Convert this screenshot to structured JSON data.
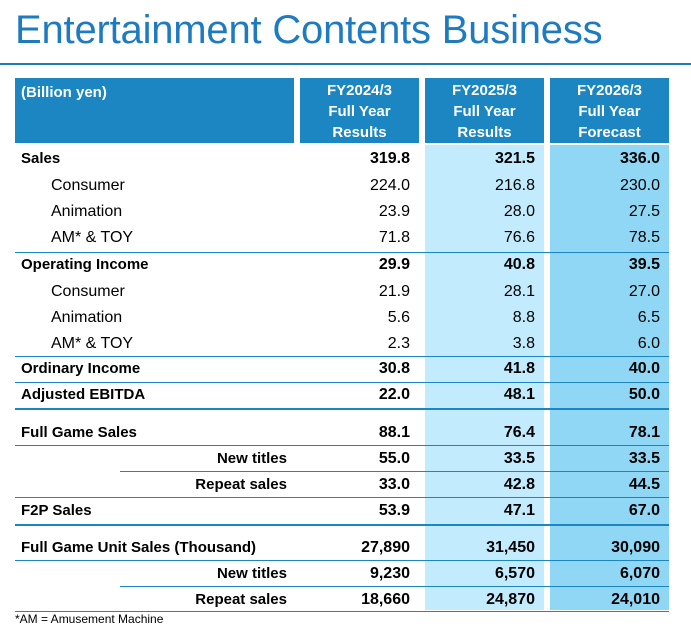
{
  "title": "Entertainment Contents Business",
  "unit_label": "(Billion yen)",
  "columns": [
    {
      "line1": "FY2024/3",
      "line2": "Full Year",
      "line3": "Results"
    },
    {
      "line1": "FY2025/3",
      "line2": "Full Year",
      "line3": "Results"
    },
    {
      "line1": "FY2026/3",
      "line2": "Full Year",
      "line3": "Forecast"
    }
  ],
  "rows": [
    {
      "label": "Sales",
      "v": [
        "319.8",
        "321.5",
        "336.0"
      ]
    },
    {
      "label": "Consumer",
      "v": [
        "224.0",
        "216.8",
        "230.0"
      ]
    },
    {
      "label": "Animation",
      "v": [
        "23.9",
        "28.0",
        "27.5"
      ]
    },
    {
      "label": "AM* & TOY",
      "v": [
        "71.8",
        "76.6",
        "78.5"
      ]
    },
    {
      "label": "Operating Income",
      "v": [
        "29.9",
        "40.8",
        "39.5"
      ]
    },
    {
      "label": "Consumer",
      "v": [
        "21.9",
        "28.1",
        "27.0"
      ]
    },
    {
      "label": "Animation",
      "v": [
        "5.6",
        "8.8",
        "6.5"
      ]
    },
    {
      "label": "AM* & TOY",
      "v": [
        "2.3",
        "3.8",
        "6.0"
      ]
    },
    {
      "label": "Ordinary Income",
      "v": [
        "30.8",
        "41.8",
        "40.0"
      ]
    },
    {
      "label": "Adjusted EBITDA",
      "v": [
        "22.0",
        "48.1",
        "50.0"
      ]
    },
    {
      "label": "Full Game Sales",
      "v": [
        "88.1",
        "76.4",
        "78.1"
      ]
    },
    {
      "label": "New titles",
      "v": [
        "55.0",
        "33.5",
        "33.5"
      ]
    },
    {
      "label": "Repeat sales",
      "v": [
        "33.0",
        "42.8",
        "44.5"
      ]
    },
    {
      "label": "F2P Sales",
      "v": [
        "53.9",
        "47.1",
        "67.0"
      ]
    },
    {
      "label": "Full Game Unit Sales (Thousand)",
      "v": [
        "27,890",
        "31,450",
        "30,090"
      ]
    },
    {
      "label": "New titles",
      "v": [
        "9,230",
        "6,570",
        "6,070"
      ]
    },
    {
      "label": "Repeat sales",
      "v": [
        "18,660",
        "24,870",
        "24,010"
      ]
    }
  ],
  "footnote": "*AM = Amusement Machine"
}
